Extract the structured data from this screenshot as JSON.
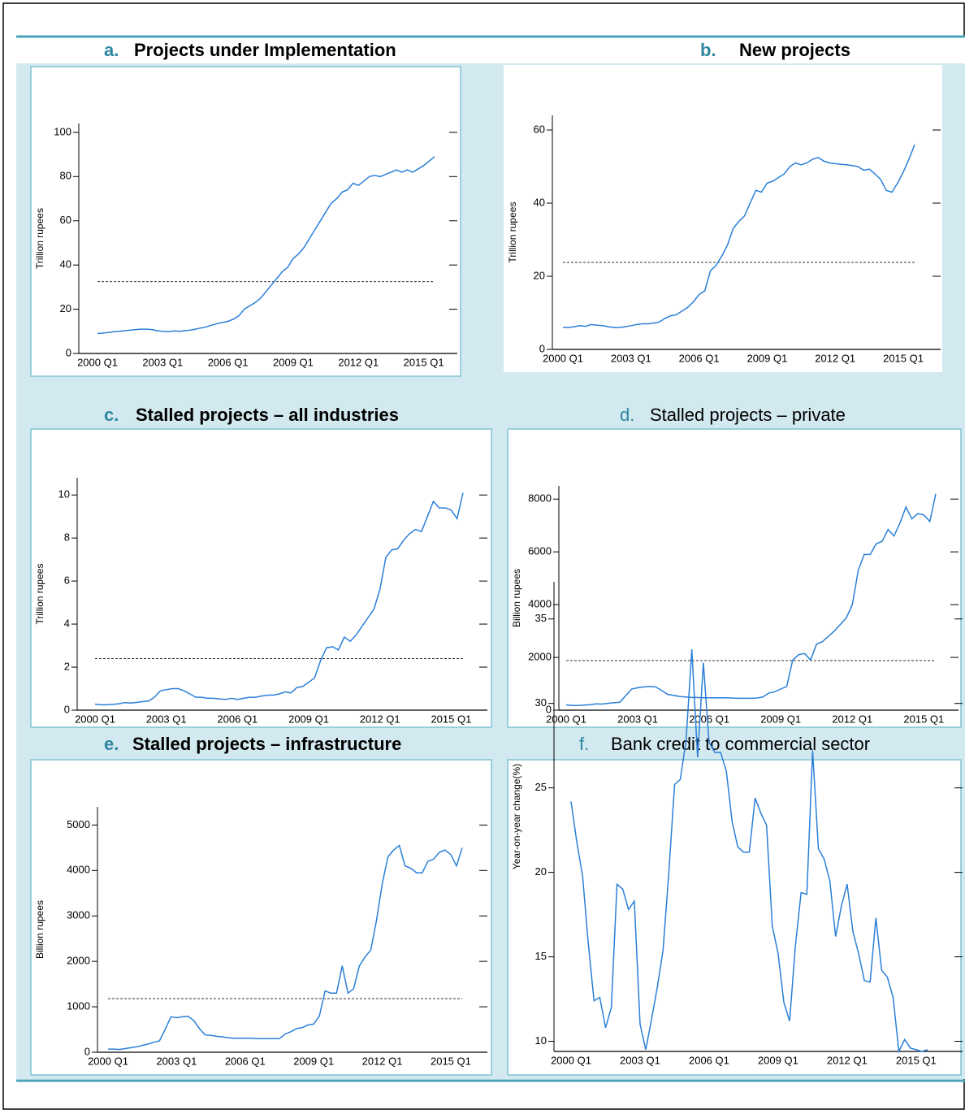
{
  "chart_data": [
    {
      "type": "line",
      "panel": "a.",
      "title": "Projects under Implementation",
      "title_bold": true,
      "y_label": "Trillion rupees",
      "color": "#2b7fd8",
      "categories": [
        "2000 Q1",
        null,
        null,
        null,
        null,
        null,
        null,
        null,
        null,
        null,
        null,
        null,
        "2003 Q1",
        null,
        null,
        null,
        null,
        null,
        null,
        null,
        null,
        null,
        null,
        null,
        "2006 Q1",
        null,
        null,
        null,
        null,
        null,
        null,
        null,
        null,
        null,
        null,
        null,
        "2009 Q1",
        null,
        null,
        null,
        null,
        null,
        null,
        null,
        null,
        null,
        null,
        null,
        "2012 Q1",
        null,
        null,
        null,
        null,
        null,
        null,
        null,
        null,
        null,
        null,
        null,
        "2015 Q1",
        null,
        null
      ],
      "values": [
        9,
        9.2,
        9.5,
        9.8,
        10,
        10.3,
        10.5,
        10.8,
        11,
        11,
        10.8,
        10.3,
        10,
        9.8,
        10.2,
        10,
        10.3,
        10.5,
        11,
        11.5,
        12,
        12.8,
        13.5,
        14,
        14.5,
        15.5,
        17,
        20,
        21.5,
        23,
        25,
        28,
        31,
        34,
        37,
        39,
        43,
        45,
        48,
        52,
        56,
        60,
        64,
        68,
        70,
        73,
        74,
        77,
        76,
        78,
        80,
        80.5,
        80,
        81,
        82,
        83,
        82,
        83,
        82,
        83.5,
        85,
        87,
        89
      ],
      "reference_line": 32.5,
      "ylim": [
        0,
        104
      ],
      "yticks": [
        0,
        20,
        40,
        60,
        80,
        100
      ]
    },
    {
      "type": "line",
      "panel": "b.",
      "title": "New projects",
      "title_bold": true,
      "y_label": "Trillion rupees",
      "color": "#2b7fd8",
      "categories": [
        "2000 Q1",
        null,
        null,
        null,
        null,
        null,
        null,
        null,
        null,
        null,
        null,
        null,
        "2003 Q1",
        null,
        null,
        null,
        null,
        null,
        null,
        null,
        null,
        null,
        null,
        null,
        "2006 Q1",
        null,
        null,
        null,
        null,
        null,
        null,
        null,
        null,
        null,
        null,
        null,
        "2009 Q1",
        null,
        null,
        null,
        null,
        null,
        null,
        null,
        null,
        null,
        null,
        null,
        "2012 Q1",
        null,
        null,
        null,
        null,
        null,
        null,
        null,
        null,
        null,
        null,
        null,
        "2015 Q1",
        null,
        null
      ],
      "values": [
        6,
        6,
        6.2,
        6.5,
        6.3,
        6.8,
        6.6,
        6.5,
        6.2,
        6,
        6,
        6.2,
        6.5,
        6.8,
        7,
        7,
        7.2,
        7.5,
        8.5,
        9.2,
        9.5,
        10.5,
        11.5,
        13,
        15,
        16,
        21.5,
        23,
        25.5,
        28.5,
        33,
        35,
        36.5,
        40,
        43.5,
        43,
        45.5,
        46,
        47,
        48,
        50,
        51,
        50.5,
        51,
        52,
        52.5,
        51.5,
        51,
        50.8,
        50.6,
        50.5,
        50.3,
        50,
        49,
        49.3,
        48,
        46.5,
        43.5,
        43,
        45.5,
        48.5,
        52,
        56
      ],
      "reference_line": 23.8,
      "ylim": [
        0,
        64
      ],
      "yticks": [
        0,
        20,
        40,
        60
      ]
    },
    {
      "type": "line",
      "panel": "c.",
      "title": "Stalled projects – all industries",
      "title_bold": true,
      "y_label": "Trillion rupees",
      "color": "#2b7fd8",
      "categories": [
        "2000 Q1",
        null,
        null,
        null,
        null,
        null,
        null,
        null,
        null,
        null,
        null,
        null,
        "2003 Q1",
        null,
        null,
        null,
        null,
        null,
        null,
        null,
        null,
        null,
        null,
        null,
        "2006 Q1",
        null,
        null,
        null,
        null,
        null,
        null,
        null,
        null,
        null,
        null,
        null,
        "2009 Q1",
        null,
        null,
        null,
        null,
        null,
        null,
        null,
        null,
        null,
        null,
        null,
        "2012 Q1",
        null,
        null,
        null,
        null,
        null,
        null,
        null,
        null,
        null,
        null,
        null,
        "2015 Q1",
        null,
        null
      ],
      "values": [
        0.28,
        0.25,
        0.25,
        0.27,
        0.3,
        0.35,
        0.33,
        0.36,
        0.4,
        0.42,
        0.6,
        0.9,
        0.95,
        1.0,
        1.0,
        0.9,
        0.75,
        0.6,
        0.6,
        0.55,
        0.55,
        0.52,
        0.5,
        0.55,
        0.5,
        0.55,
        0.6,
        0.6,
        0.65,
        0.7,
        0.7,
        0.75,
        0.85,
        0.8,
        1.05,
        1.1,
        1.3,
        1.5,
        2.3,
        2.9,
        2.95,
        2.8,
        3.4,
        3.2,
        3.5,
        3.9,
        4.3,
        4.7,
        5.6,
        7.1,
        7.45,
        7.5,
        7.9,
        8.2,
        8.4,
        8.3,
        9.0,
        9.7,
        9.4,
        9.4,
        9.3,
        8.9,
        10.1
      ],
      "reference_line": 2.4,
      "ylim": [
        0,
        10.8
      ],
      "yticks": [
        0,
        2,
        4,
        6,
        8,
        10
      ]
    },
    {
      "type": "line",
      "panel": "d.",
      "title": "Stalled projects – private",
      "title_bold": false,
      "y_label": "Billion rupees",
      "color": "#2b7fd8",
      "categories": [
        "2000 Q1",
        null,
        null,
        null,
        null,
        null,
        null,
        null,
        null,
        null,
        null,
        null,
        "2003 Q1",
        null,
        null,
        null,
        null,
        null,
        null,
        null,
        null,
        null,
        null,
        null,
        "2006 Q1",
        null,
        null,
        null,
        null,
        null,
        null,
        null,
        null,
        null,
        null,
        null,
        "2009 Q1",
        null,
        null,
        null,
        null,
        null,
        null,
        null,
        null,
        null,
        null,
        null,
        "2012 Q1",
        null,
        null,
        null,
        null,
        null,
        null,
        null,
        null,
        null,
        null,
        null,
        "2015 Q1",
        null,
        null
      ],
      "values": [
        200,
        180,
        180,
        190,
        210,
        240,
        230,
        260,
        280,
        300,
        550,
        800,
        850,
        880,
        900,
        880,
        750,
        600,
        560,
        520,
        500,
        480,
        480,
        470,
        470,
        470,
        470,
        470,
        460,
        450,
        450,
        450,
        460,
        500,
        650,
        700,
        800,
        900,
        1900,
        2100,
        2150,
        1900,
        2500,
        2600,
        2800,
        3000,
        3250,
        3500,
        4000,
        5300,
        5900,
        5900,
        6300,
        6400,
        6850,
        6600,
        7100,
        7700,
        7250,
        7450,
        7400,
        7150,
        8200
      ],
      "reference_line": 1880,
      "ylim": [
        0,
        8500
      ],
      "yticks": [
        0,
        2000,
        4000,
        6000,
        8000
      ]
    },
    {
      "type": "line",
      "panel": "e.",
      "title": "Stalled projects – infrastructure",
      "title_bold": true,
      "y_label": "Billion rupees",
      "color": "#2b7fd8",
      "categories": [
        "2000 Q1",
        null,
        null,
        null,
        null,
        null,
        null,
        null,
        null,
        null,
        null,
        null,
        "2003 Q1",
        null,
        null,
        null,
        null,
        null,
        null,
        null,
        null,
        null,
        null,
        null,
        "2006 Q1",
        null,
        null,
        null,
        null,
        null,
        null,
        null,
        null,
        null,
        null,
        null,
        "2009 Q1",
        null,
        null,
        null,
        null,
        null,
        null,
        null,
        null,
        null,
        null,
        null,
        "2012 Q1",
        null,
        null,
        null,
        null,
        null,
        null,
        null,
        null,
        null,
        null,
        null,
        "2015 Q1",
        null,
        null
      ],
      "values": [
        70,
        70,
        60,
        80,
        100,
        120,
        150,
        180,
        220,
        250,
        500,
        780,
        760,
        780,
        790,
        700,
        520,
        380,
        370,
        350,
        340,
        320,
        310,
        310,
        310,
        310,
        300,
        300,
        300,
        300,
        300,
        400,
        450,
        520,
        540,
        600,
        620,
        800,
        1350,
        1300,
        1300,
        1900,
        1300,
        1400,
        1900,
        2100,
        2250,
        2900,
        3700,
        4300,
        4450,
        4550,
        4100,
        4050,
        3950,
        3950,
        4200,
        4250,
        4400,
        4450,
        4350,
        4100,
        4500
      ],
      "reference_line": 1180,
      "ylim": [
        0,
        5400
      ],
      "yticks": [
        0,
        1000,
        2000,
        3000,
        4000,
        5000
      ]
    },
    {
      "type": "line",
      "panel": "f.",
      "title": "Bank credit to commercial sector",
      "title_bold": false,
      "y_label": "Year-on-year change(%)",
      "color": "#2b7fd8",
      "categories": [
        "2000 Q1",
        null,
        null,
        null,
        null,
        null,
        null,
        null,
        null,
        null,
        null,
        null,
        "2003 Q1",
        null,
        null,
        null,
        null,
        null,
        null,
        null,
        null,
        null,
        null,
        null,
        "2006 Q1",
        null,
        null,
        null,
        null,
        null,
        null,
        null,
        null,
        null,
        null,
        null,
        "2009 Q1",
        null,
        null,
        null,
        null,
        null,
        null,
        null,
        null,
        null,
        null,
        null,
        "2012 Q1",
        null,
        null,
        null,
        null,
        null,
        null,
        null,
        null,
        null,
        null,
        null,
        "2015 Q1",
        null,
        null
      ],
      "values": [
        24.2,
        21.8,
        19.8,
        15.8,
        12.4,
        12.6,
        10.8,
        12,
        19.3,
        19,
        17.8,
        18.3,
        11,
        9.5,
        11.3,
        13.2,
        15.4,
        20,
        25.2,
        25.5,
        27.8,
        33.2,
        26.8,
        32.4,
        27.7,
        27.1,
        27.1,
        26,
        23,
        21.5,
        21.2,
        21.2,
        24.4,
        23.5,
        22.8,
        16.8,
        15.2,
        12.3,
        11.2,
        15.6,
        18.8,
        18.7,
        27.2,
        21.4,
        20.8,
        19.5,
        16.2,
        18,
        19.3,
        16.5,
        15.2,
        13.6,
        13.5,
        17.3,
        14.2,
        13.8,
        12.6,
        9.4,
        10.1,
        9.6,
        9.5,
        9.4,
        9.5
      ],
      "ylim": [
        9.4,
        37.2
      ],
      "yticks": [
        10,
        15,
        20,
        25,
        30,
        35
      ]
    }
  ]
}
